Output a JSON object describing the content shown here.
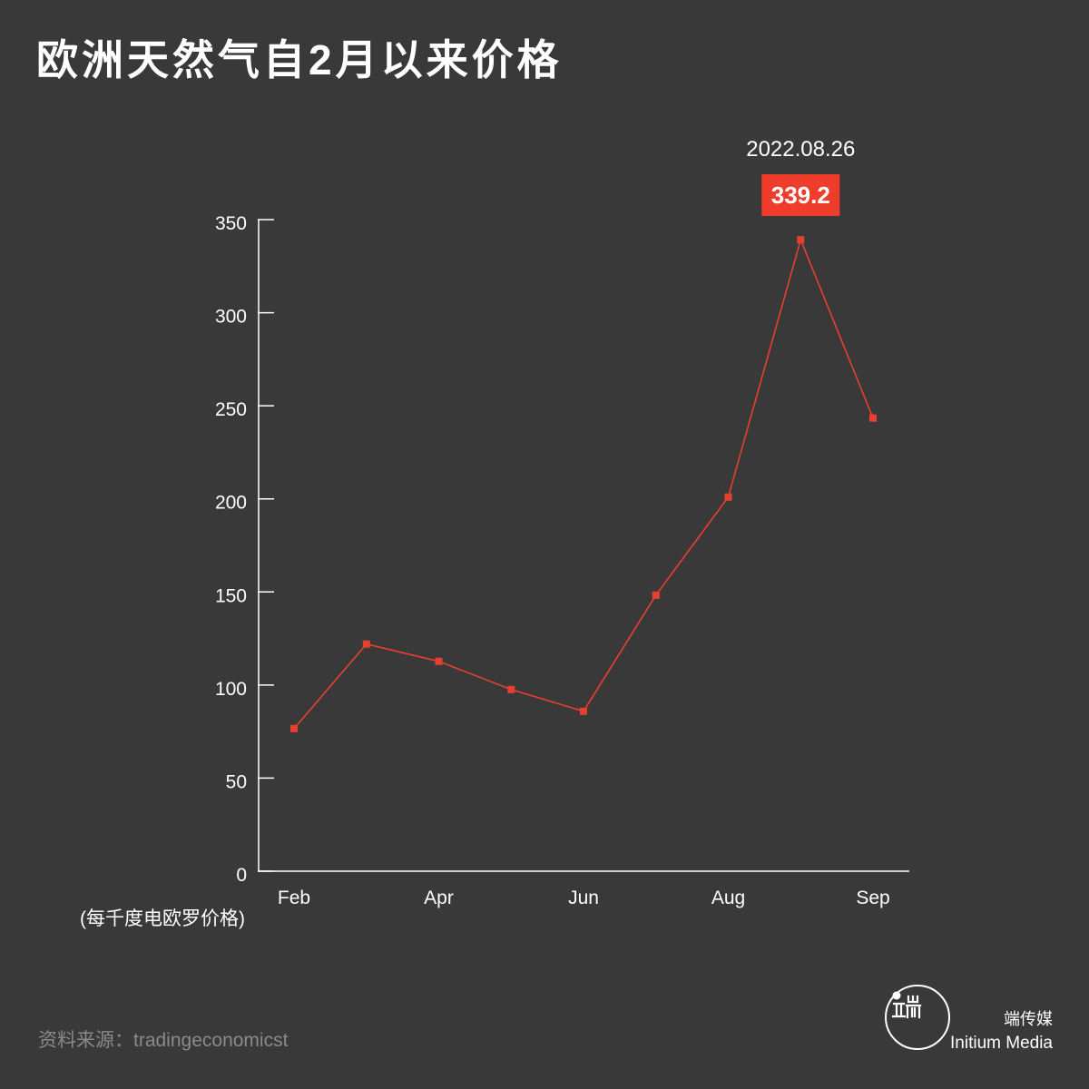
{
  "chart_data": {
    "type": "line",
    "title": "欧洲天然气自2月以来价格",
    "categories": [
      "Feb",
      "",
      "Apr",
      "",
      "Jun",
      "",
      "Aug",
      "",
      "Sep"
    ],
    "series": [
      {
        "values": [
          76.6,
          122.0,
          112.7,
          97.6,
          85.9,
          148.3,
          201.0,
          339.2,
          243.4
        ],
        "color": "#e8402e"
      }
    ],
    "ylabel": "(每千度电欧罗价格)",
    "ylim": [
      0,
      350
    ],
    "yticks": [
      0,
      50,
      100,
      150,
      200,
      250,
      300,
      350
    ],
    "grid": false,
    "legend": "none",
    "annotations": [
      {
        "label": "2022.08.26",
        "value": 339.2,
        "box_color": "#f03c2b"
      }
    ]
  },
  "source": "资料来源：tradingeconomicst",
  "brand": {
    "name_zh": "端传媒",
    "name_en": "Initium Media",
    "icon": "initium-logo-icon"
  },
  "colors": {
    "background": "#393939",
    "text": "#ffffff",
    "axis": "#ffffff",
    "source_text": "#8a8a8a"
  }
}
